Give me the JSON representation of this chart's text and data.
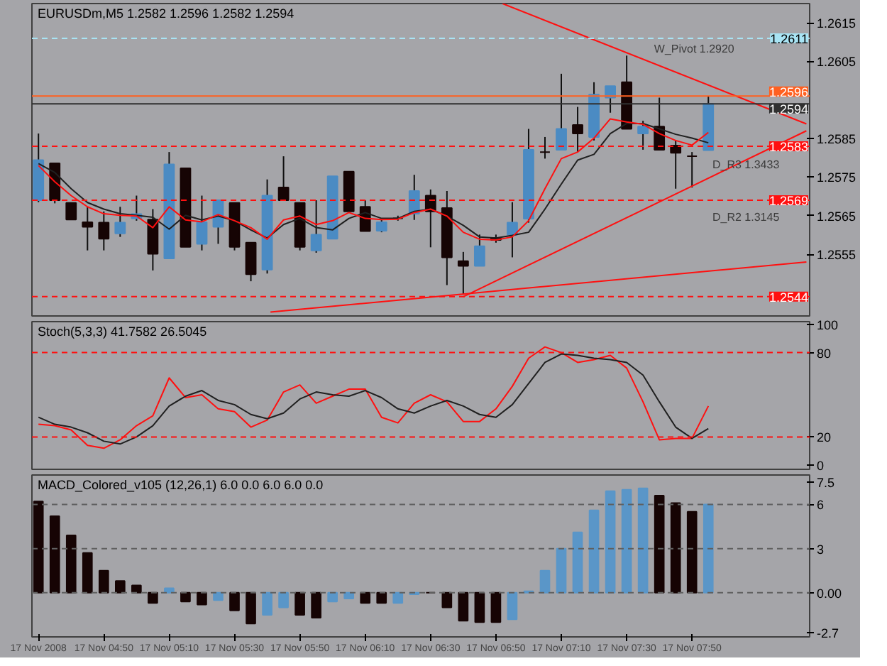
{
  "chart_data": [
    {
      "type": "candlestick",
      "title": "EURUSDm,M5  1.2582 1.2596 1.2582 1.2594",
      "tick_labels": "y",
      "x": [
        "2008-11-17T04:30",
        "2008-11-17T04:35",
        "2008-11-17T04:40",
        "2008-11-17T04:45",
        "2008-11-17T04:50",
        "2008-11-17T04:55",
        "2008-11-17T05:00",
        "2008-11-17T05:05",
        "2008-11-17T05:10",
        "2008-11-17T05:15",
        "2008-11-17T05:20",
        "2008-11-17T05:25",
        "2008-11-17T05:30",
        "2008-11-17T05:35",
        "2008-11-17T05:40",
        "2008-11-17T05:45",
        "2008-11-17T05:50",
        "2008-11-17T05:55",
        "2008-11-17T06:00",
        "2008-11-17T06:05",
        "2008-11-17T06:10",
        "2008-11-17T06:15",
        "2008-11-17T06:20",
        "2008-11-17T06:25",
        "2008-11-17T06:30",
        "2008-11-17T06:35",
        "2008-11-17T06:40",
        "2008-11-17T06:45",
        "2008-11-17T06:50",
        "2008-11-17T06:55",
        "2008-11-17T07:00",
        "2008-11-17T07:05",
        "2008-11-17T07:10",
        "2008-11-17T07:15",
        "2008-11-17T07:20",
        "2008-11-17T07:25",
        "2008-11-17T07:30",
        "2008-11-17T07:35",
        "2008-11-17T07:40",
        "2008-11-17T07:45",
        "2008-11-17T07:50",
        "2008-11-17T07:55"
      ],
      "ohlc": [
        [
          1.2569,
          1.25863,
          1.25685,
          1.25794
        ],
        [
          1.25786,
          1.25786,
          1.25682,
          1.2569
        ],
        [
          1.25683,
          1.25683,
          1.2564,
          1.2564
        ],
        [
          1.25633,
          1.25673,
          1.2556,
          1.25621
        ],
        [
          1.25632,
          1.25661,
          1.2556,
          1.2559
        ],
        [
          1.25604,
          1.25673,
          1.25595,
          1.25632
        ],
        [
          1.25643,
          1.25702,
          1.25637,
          1.25654
        ],
        [
          1.2564,
          1.25667,
          1.25508,
          1.25551
        ],
        [
          1.25539,
          1.25815,
          1.25539,
          1.25783
        ],
        [
          1.25773,
          1.25773,
          1.25569,
          1.25569
        ],
        [
          1.25577,
          1.25702,
          1.2556,
          1.25633
        ],
        [
          1.25621,
          1.2569,
          1.25577,
          1.2569
        ],
        [
          1.25683,
          1.25683,
          1.2556,
          1.25569
        ],
        [
          1.2558,
          1.2558,
          1.2548,
          1.25498
        ],
        [
          1.2551,
          1.25744,
          1.255,
          1.25702
        ],
        [
          1.25723,
          1.25804,
          1.2569,
          1.2569
        ],
        [
          1.25683,
          1.25683,
          1.2556,
          1.25569
        ],
        [
          1.2556,
          1.2569,
          1.25554,
          1.25601
        ],
        [
          1.2559,
          1.25752,
          1.2559,
          1.25752
        ],
        [
          1.25764,
          1.25764,
          1.25661,
          1.25661
        ],
        [
          1.25673,
          1.2569,
          1.2561,
          1.2561
        ],
        [
          1.25611,
          1.2564,
          1.25607,
          1.25633
        ],
        [
          1.25643,
          1.2565,
          1.25637,
          1.25643
        ],
        [
          1.25655,
          1.25756,
          1.25639,
          1.25714
        ],
        [
          1.25702,
          1.25718,
          1.25568,
          1.25661
        ],
        [
          1.2567,
          1.25714,
          1.2547,
          1.25542
        ],
        [
          1.25532,
          1.25556,
          1.25446,
          1.2552
        ],
        [
          1.2552,
          1.25601,
          1.2552,
          1.25571
        ],
        [
          1.25592,
          1.25601,
          1.2558,
          1.25587
        ],
        [
          1.25601,
          1.25685,
          1.25542,
          1.25632
        ],
        [
          1.25642,
          1.25875,
          1.25632,
          1.25821
        ],
        [
          1.25815,
          1.25854,
          1.25798,
          1.25815
        ],
        [
          1.25821,
          1.26018,
          1.25821,
          1.25875
        ],
        [
          1.25885,
          1.25932,
          1.25815,
          1.25863
        ],
        [
          1.25854,
          1.25996,
          1.25845,
          1.25964
        ],
        [
          1.25956,
          1.25986,
          1.25917,
          1.25986
        ],
        [
          1.25996,
          1.26065,
          1.25875,
          1.25875
        ],
        [
          1.25863,
          1.25896,
          1.25821,
          1.25881
        ],
        [
          1.25881,
          1.25956,
          1.25821,
          1.25821
        ],
        [
          1.25832,
          1.25845,
          1.2572,
          1.25813
        ],
        [
          1.25804,
          1.25815,
          1.25723,
          1.25804
        ],
        [
          1.2582,
          1.2596,
          1.2582,
          1.2594
        ]
      ],
      "colors": [
        "#4b8bc3",
        "#160404",
        "#160404",
        "#160404",
        "#160404",
        "#4b8bc3",
        "#4b8bc3",
        "#160404",
        "#4b8bc3",
        "#160404",
        "#4b8bc3",
        "#4b8bc3",
        "#160404",
        "#160404",
        "#4b8bc3",
        "#160404",
        "#160404",
        "#4b8bc3",
        "#4b8bc3",
        "#160404",
        "#160404",
        "#4b8bc3",
        "#160404",
        "#4b8bc3",
        "#160404",
        "#160404",
        "#160404",
        "#4b8bc3",
        "#160404",
        "#4b8bc3",
        "#4b8bc3",
        "#160404",
        "#4b8bc3",
        "#160404",
        "#4b8bc3",
        "#4b8bc3",
        "#160404",
        "#4b8bc3",
        "#160404",
        "#160404",
        "#160404",
        "#4b8bc3"
      ],
      "series": [
        {
          "type": "line",
          "color": "#202020",
          "values": [
            1.25785,
            1.25762,
            1.2572,
            1.25684,
            1.25667,
            1.25655,
            1.25651,
            1.25646,
            1.25615,
            1.25651,
            1.25639,
            1.25649,
            1.25637,
            1.25613,
            1.25592,
            1.25627,
            1.25643,
            1.25619,
            1.25613,
            1.25643,
            1.25658,
            1.25643,
            1.25643,
            1.25661,
            1.25667,
            1.25649,
            1.25625,
            1.25595,
            1.25592,
            1.25599,
            1.25607,
            1.25667,
            1.25732,
            1.25794,
            1.25809,
            1.25863,
            1.25889,
            1.25889,
            1.25875,
            1.25861,
            1.25851,
            1.25839
          ]
        },
        {
          "type": "line",
          "color": "#ff1010",
          "values": [
            1.2578,
            1.25738,
            1.25702,
            1.25673,
            1.25655,
            1.25651,
            1.25649,
            1.25619,
            1.25673,
            1.25639,
            1.25634,
            1.25653,
            1.25637,
            1.25619,
            1.25589,
            1.25639,
            1.25649,
            1.25627,
            1.25637,
            1.25658,
            1.25643,
            1.2564,
            1.25641,
            1.25658,
            1.25667,
            1.25649,
            1.25607,
            1.25589,
            1.25587,
            1.25595,
            1.25637,
            1.2572,
            1.25798,
            1.25815,
            1.25851,
            1.25901,
            1.25893,
            1.25887,
            1.25863,
            1.25845,
            1.25833,
            1.25866
          ]
        },
        {
          "type": "line",
          "color": "#ff1010",
          "x": [
            "2008-11-17T06:52",
            "2008-11-17T08:25"
          ],
          "values": [
            1.262,
            1.25888
          ]
        },
        {
          "type": "line",
          "color": "#ff1010",
          "x": [
            "2008-11-17T06:40",
            "2008-11-17T08:25"
          ],
          "values": [
            1.2544,
            1.2587
          ]
        },
        {
          "type": "line",
          "color": "#ff1010",
          "x": [
            "2008-11-17T05:41",
            "2008-11-17T08:25"
          ],
          "values": [
            1.254,
            1.2553
          ]
        }
      ],
      "ref_lines": [
        {
          "axis": "y",
          "value": 1.2611,
          "label": "1.2611",
          "color": "#a8e4f4",
          "line_style": "dashed"
        },
        {
          "axis": "y",
          "value": 1.2596,
          "label": "1.2596",
          "color": "#ff6020",
          "line_style": "solid"
        },
        {
          "axis": "y",
          "value": 1.2594,
          "label": "1.2594",
          "color": "#303030",
          "line_style": "solid"
        },
        {
          "axis": "y",
          "value": 1.2583,
          "label": "1.2583",
          "color": "#ff1010",
          "line_style": "dashed"
        },
        {
          "axis": "y",
          "value": 1.2569,
          "label": "1.2569",
          "color": "#ff1010",
          "line_style": "dashed"
        },
        {
          "axis": "y",
          "value": 1.2544,
          "label": "1.2544",
          "color": "#ff1010",
          "line_style": "dashed"
        }
      ],
      "annotations": [
        "W_Pivot 1.2920",
        "D_R3 1.3433",
        "D_R2 1.3145"
      ],
      "xlim": [
        "2008-11-17T04:28",
        "2008-11-17T08:26"
      ],
      "ylim": [
        1.2539,
        1.262
      ],
      "yticks": [
        1.2555,
        1.2565,
        1.2575,
        1.2585,
        1.2605,
        1.2615
      ]
    },
    {
      "type": "line",
      "title": "Stoch(5,3,3) 41.7582 26.5045",
      "tick_labels": "y",
      "x": [
        "2008-11-17T04:30",
        "2008-11-17T04:35",
        "2008-11-17T04:40",
        "2008-11-17T04:45",
        "2008-11-17T04:50",
        "2008-11-17T04:55",
        "2008-11-17T05:00",
        "2008-11-17T05:05",
        "2008-11-17T05:10",
        "2008-11-17T05:15",
        "2008-11-17T05:20",
        "2008-11-17T05:25",
        "2008-11-17T05:30",
        "2008-11-17T05:35",
        "2008-11-17T05:40",
        "2008-11-17T05:45",
        "2008-11-17T05:50",
        "2008-11-17T05:55",
        "2008-11-17T06:00",
        "2008-11-17T06:05",
        "2008-11-17T06:10",
        "2008-11-17T06:15",
        "2008-11-17T06:20",
        "2008-11-17T06:25",
        "2008-11-17T06:30",
        "2008-11-17T06:35",
        "2008-11-17T06:40",
        "2008-11-17T06:45",
        "2008-11-17T06:50",
        "2008-11-17T06:55",
        "2008-11-17T07:00",
        "2008-11-17T07:05",
        "2008-11-17T07:10",
        "2008-11-17T07:15",
        "2008-11-17T07:20",
        "2008-11-17T07:25",
        "2008-11-17T07:30",
        "2008-11-17T07:35",
        "2008-11-17T07:40",
        "2008-11-17T07:45",
        "2008-11-17T07:50",
        "2008-11-17T07:55"
      ],
      "series": [
        {
          "color": "#ff1010",
          "values": [
            29,
            28,
            25,
            14,
            12,
            18,
            28,
            35,
            62,
            48,
            50,
            40,
            38,
            27,
            32,
            52,
            57,
            44,
            49,
            54,
            54,
            34,
            30,
            44,
            50,
            45,
            31,
            31,
            40,
            56,
            76,
            84,
            80,
            73,
            75,
            78,
            69,
            45,
            18,
            19,
            19,
            42
          ]
        },
        {
          "color": "#202020",
          "values": [
            34,
            29,
            27,
            23,
            17,
            15,
            20,
            28,
            42,
            49,
            53,
            46,
            43,
            36,
            33,
            37,
            47,
            52,
            50,
            49,
            53,
            48,
            40,
            37,
            42,
            46,
            42,
            36,
            34,
            43,
            58,
            73,
            79,
            78,
            76,
            75,
            73,
            64,
            45,
            27,
            19,
            26
          ]
        }
      ],
      "ref_lines": [
        {
          "axis": "y",
          "value": 80,
          "color": "#ff1010",
          "line_style": "dashed"
        },
        {
          "axis": "y",
          "value": 20,
          "color": "#ff1010",
          "line_style": "dashed"
        }
      ],
      "xlim": [
        "2008-11-17T04:28",
        "2008-11-17T08:26"
      ],
      "ylim": [
        -3,
        102
      ],
      "yticks": [
        0,
        20,
        80,
        100
      ]
    },
    {
      "type": "bar",
      "title": "MACD_Colored_v105 (12,26,1) 6.0 0.0 6.0 6.0 0.0",
      "x": [
        "2008-11-17T04:30",
        "2008-11-17T04:35",
        "2008-11-17T04:40",
        "2008-11-17T04:45",
        "2008-11-17T04:50",
        "2008-11-17T04:55",
        "2008-11-17T05:00",
        "2008-11-17T05:05",
        "2008-11-17T05:10",
        "2008-11-17T05:15",
        "2008-11-17T05:20",
        "2008-11-17T05:25",
        "2008-11-17T05:30",
        "2008-11-17T05:35",
        "2008-11-17T05:40",
        "2008-11-17T05:45",
        "2008-11-17T05:50",
        "2008-11-17T05:55",
        "2008-11-17T06:00",
        "2008-11-17T06:05",
        "2008-11-17T06:10",
        "2008-11-17T06:15",
        "2008-11-17T06:20",
        "2008-11-17T06:25",
        "2008-11-17T06:30",
        "2008-11-17T06:35",
        "2008-11-17T06:40",
        "2008-11-17T06:45",
        "2008-11-17T06:50",
        "2008-11-17T06:55",
        "2008-11-17T07:00",
        "2008-11-17T07:05",
        "2008-11-17T07:10",
        "2008-11-17T07:15",
        "2008-11-17T07:20",
        "2008-11-17T07:25",
        "2008-11-17T07:30",
        "2008-11-17T07:35",
        "2008-11-17T07:40",
        "2008-11-17T07:45",
        "2008-11-17T07:50",
        "2008-11-17T07:55"
      ],
      "values": [
        6.2,
        5.2,
        3.9,
        2.7,
        1.5,
        0.8,
        0.5,
        -0.7,
        0.3,
        -0.6,
        -0.8,
        -0.5,
        -1.2,
        -2.1,
        -1.5,
        -1.0,
        -1.5,
        -1.7,
        -0.6,
        -0.4,
        -0.7,
        -0.7,
        -0.7,
        -0.1,
        0.0,
        -1.0,
        -1.9,
        -2.0,
        -2.0,
        -1.8,
        0.1,
        1.5,
        3.0,
        4.1,
        5.6,
        6.9,
        7.0,
        7.1,
        6.6,
        6.1,
        5.5,
        6.0
      ],
      "colors": [
        "#160404",
        "#160404",
        "#160404",
        "#160404",
        "#160404",
        "#160404",
        "#160404",
        "#160404",
        "#5a96c8",
        "#160404",
        "#160404",
        "#5a96c8",
        "#160404",
        "#160404",
        "#5a96c8",
        "#5a96c8",
        "#160404",
        "#160404",
        "#5a96c8",
        "#5a96c8",
        "#160404",
        "#160404",
        "#5a96c8",
        "#5a96c8",
        "#160404",
        "#160404",
        "#160404",
        "#160404",
        "#160404",
        "#5a96c8",
        "#5a96c8",
        "#5a96c8",
        "#5a96c8",
        "#5a96c8",
        "#5a96c8",
        "#5a96c8",
        "#5a96c8",
        "#5a96c8",
        "#160404",
        "#160404",
        "#160404",
        "#5a96c8"
      ],
      "ref_lines": [
        {
          "axis": "y",
          "value": 6,
          "color": "#606060",
          "line_style": "dashed"
        },
        {
          "axis": "y",
          "value": 3,
          "color": "#606060",
          "line_style": "dashed"
        },
        {
          "axis": "y",
          "value": 0,
          "color": "#606060",
          "line_style": "dashed"
        }
      ],
      "xlim": [
        "2008-11-17T04:28",
        "2008-11-17T08:26"
      ],
      "ylim": [
        -3.0,
        8.0
      ],
      "yticks": [
        -2.7,
        {
          "value": 0,
          "label": "0.00"
        },
        3,
        6,
        7.5
      ],
      "xticks": [
        {
          "value": "2008-11-17T04:30",
          "label": "17 Nov 2008"
        },
        {
          "value": "2008-11-17T04:50",
          "label": "17 Nov 04:50"
        },
        {
          "value": "2008-11-17T05:10",
          "label": "17 Nov 05:10"
        },
        {
          "value": "2008-11-17T05:30",
          "label": "17 Nov 05:30"
        },
        {
          "value": "2008-11-17T05:50",
          "label": "17 Nov 05:50"
        },
        {
          "value": "2008-11-17T06:10",
          "label": "17 Nov 06:10"
        },
        {
          "value": "2008-11-17T06:30",
          "label": "17 Nov 06:30"
        },
        {
          "value": "2008-11-17T06:50",
          "label": "17 Nov 06:50"
        },
        {
          "value": "2008-11-17T07:10",
          "label": "17 Nov 07:10"
        },
        {
          "value": "2008-11-17T07:30",
          "label": "17 Nov 07:30"
        },
        {
          "value": "2008-11-17T07:50",
          "label": "17 Nov 07:50"
        }
      ]
    }
  ]
}
